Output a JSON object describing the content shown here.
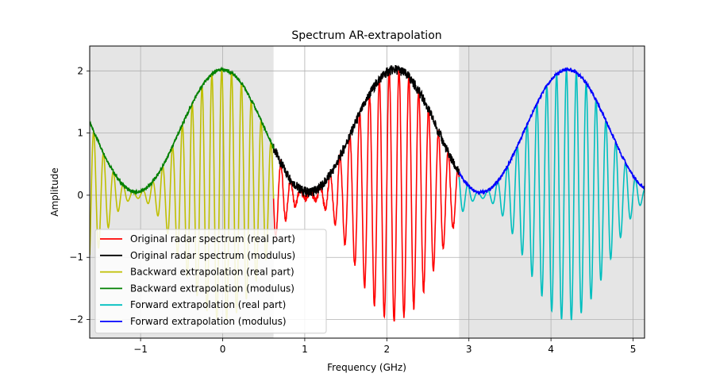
{
  "chart_data": {
    "type": "line",
    "title": "Spectrum AR-extrapolation",
    "xlabel": "Frequency (GHz)",
    "ylabel": "Amplitude",
    "xlim": [
      -1.62,
      5.14
    ],
    "ylim": [
      -2.3,
      2.4
    ],
    "xticks": [
      -1,
      0,
      1,
      2,
      3,
      4,
      5
    ],
    "yticks": [
      -2,
      -1,
      0,
      1,
      2
    ],
    "grid": true,
    "legend_position": "lower-left",
    "shaded_regions": [
      {
        "x": [
          -1.62,
          0.62
        ],
        "color": "#e5e5e5"
      },
      {
        "x": [
          2.88,
          5.14
        ],
        "color": "#e5e5e5"
      }
    ],
    "series": [
      {
        "name": "Original radar spectrum (real part)",
        "color": "#ff0000",
        "x_range": [
          0.62,
          2.88
        ],
        "kind": "real"
      },
      {
        "name": "Original radar spectrum (modulus)",
        "color": "#000000",
        "x_range": [
          0.62,
          2.88
        ],
        "kind": "modulus"
      },
      {
        "name": "Backward extrapolation (real part)",
        "color": "#bfbf00",
        "x_range": [
          -1.62,
          0.62
        ],
        "kind": "real"
      },
      {
        "name": "Backward extrapolation (modulus)",
        "color": "#008000",
        "x_range": [
          -1.62,
          0.62
        ],
        "kind": "modulus"
      },
      {
        "name": "Forward extrapolation (real part)",
        "color": "#00bfbf",
        "x_range": [
          2.88,
          5.14
        ],
        "kind": "real"
      },
      {
        "name": "Forward extrapolation (modulus)",
        "color": "#0000ff",
        "x_range": [
          2.88,
          5.14
        ],
        "kind": "modulus"
      }
    ],
    "modulus_envelope": {
      "peaks_x": [
        0.0,
        2.15,
        4.3
      ],
      "minima_x": [
        -1.05,
        1.1,
        3.22
      ],
      "peak_value": 2.02,
      "min_value": 0.05
    },
    "oscillation_spacing_ghz": 0.12
  }
}
